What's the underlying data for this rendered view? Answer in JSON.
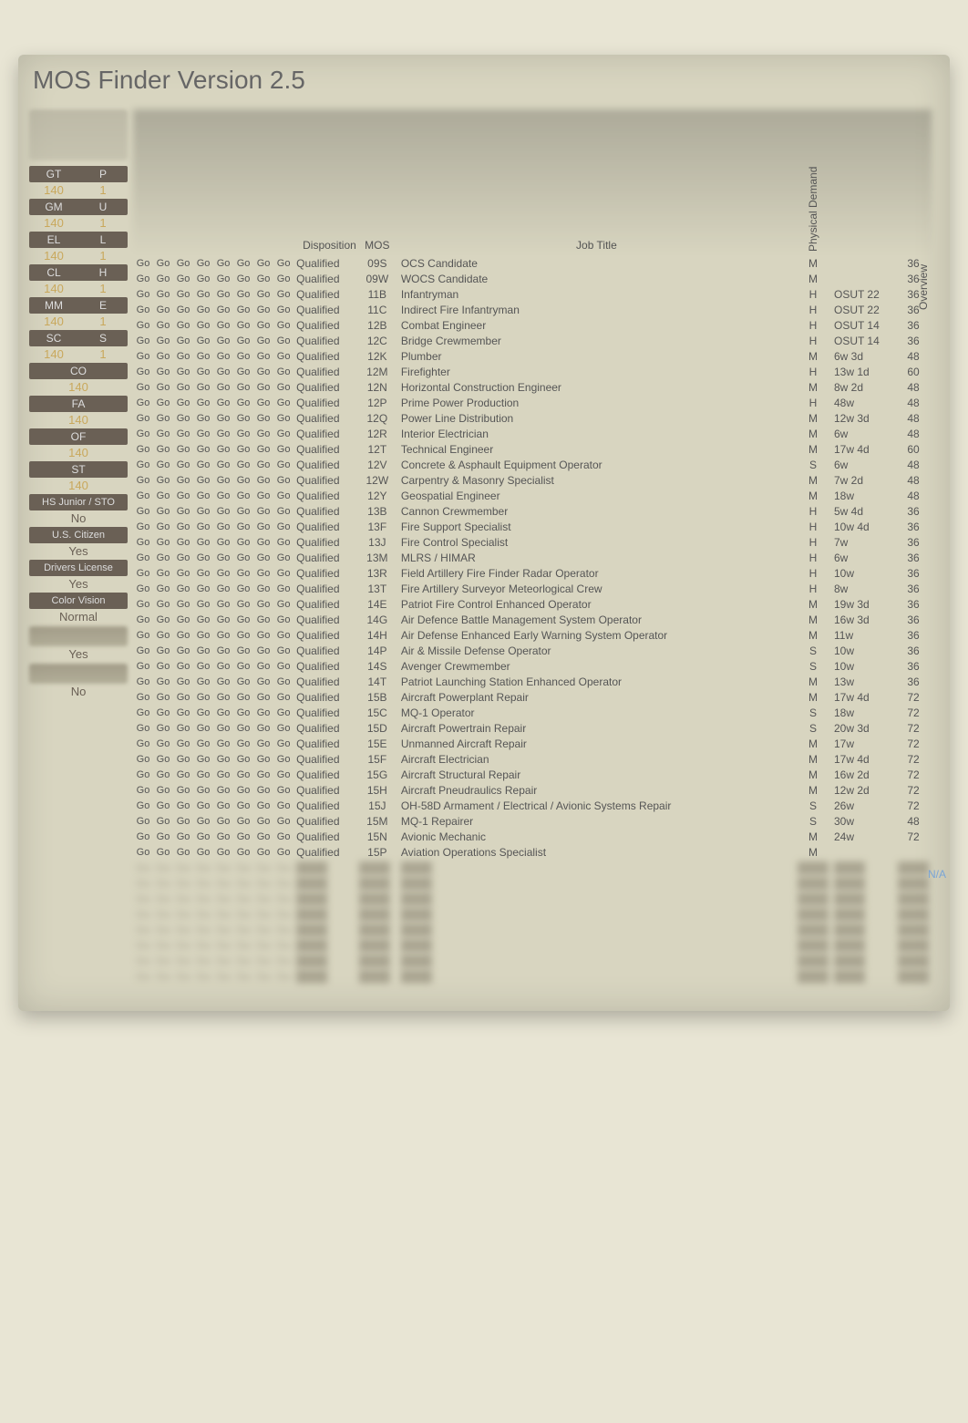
{
  "app_title": "MOS Finder Version 2.5",
  "colors": {
    "bg": "#e8e5d4",
    "panel": "#d8d5c0",
    "header_bar": "#6a6055",
    "value_text": "#c9a85c",
    "text": "#555555",
    "link_blue": "#7aa5d6"
  },
  "sidebar": {
    "scores": [
      {
        "left_label": "GT",
        "left_value": "140",
        "right_label": "P",
        "right_value": "1"
      },
      {
        "left_label": "GM",
        "left_value": "140",
        "right_label": "U",
        "right_value": "1"
      },
      {
        "left_label": "EL",
        "left_value": "140",
        "right_label": "L",
        "right_value": "1"
      },
      {
        "left_label": "CL",
        "left_value": "140",
        "right_label": "H",
        "right_value": "1"
      },
      {
        "left_label": "MM",
        "left_value": "140",
        "right_label": "E",
        "right_value": "1"
      },
      {
        "left_label": "SC",
        "left_value": "140",
        "right_label": "S",
        "right_value": "1"
      }
    ],
    "single_scores": [
      {
        "label": "CO",
        "value": "140"
      },
      {
        "label": "FA",
        "value": "140"
      },
      {
        "label": "OF",
        "value": "140"
      },
      {
        "label": "ST",
        "value": "140"
      }
    ],
    "qualifiers": [
      {
        "label": "HS Junior / STO",
        "value": "No"
      },
      {
        "label": "U.S. Citizen",
        "value": "Yes"
      },
      {
        "label": "Drivers License",
        "value": "Yes"
      },
      {
        "label": "Color Vision",
        "value": "Normal"
      }
    ],
    "answer_yes": "Yes",
    "answer_no": "No"
  },
  "columns": {
    "go_count": 8,
    "disposition": "Disposition",
    "mos": "MOS",
    "job_title": "Job Title",
    "physical_demand": "Physical Demand",
    "overview": "Overview"
  },
  "na_text": "N/A",
  "go_label": "Go",
  "rows": [
    {
      "disp": "Qualified",
      "mos": "09S",
      "title": "OCS Candidate",
      "phys": "M",
      "train": "",
      "num": "36"
    },
    {
      "disp": "Qualified",
      "mos": "09W",
      "title": "WOCS Candidate",
      "phys": "M",
      "train": "",
      "num": "36"
    },
    {
      "disp": "Qualified",
      "mos": "11B",
      "title": "Infantryman",
      "phys": "H",
      "train": "OSUT 22",
      "num": "36"
    },
    {
      "disp": "Qualified",
      "mos": "11C",
      "title": "Indirect Fire Infantryman",
      "phys": "H",
      "train": "OSUT 22",
      "num": "36"
    },
    {
      "disp": "Qualified",
      "mos": "12B",
      "title": "Combat Engineer",
      "phys": "H",
      "train": "OSUT 14",
      "num": "36"
    },
    {
      "disp": "Qualified",
      "mos": "12C",
      "title": "Bridge Crewmember",
      "phys": "H",
      "train": "OSUT 14",
      "num": "36"
    },
    {
      "disp": "Qualified",
      "mos": "12K",
      "title": "Plumber",
      "phys": "M",
      "train": "6w 3d",
      "num": "48"
    },
    {
      "disp": "Qualified",
      "mos": "12M",
      "title": "Firefighter",
      "phys": "H",
      "train": "13w 1d",
      "num": "60"
    },
    {
      "disp": "Qualified",
      "mos": "12N",
      "title": "Horizontal Construction Engineer",
      "phys": "M",
      "train": "8w 2d",
      "num": "48"
    },
    {
      "disp": "Qualified",
      "mos": "12P",
      "title": "Prime Power Production",
      "phys": "H",
      "train": "48w",
      "num": "48"
    },
    {
      "disp": "Qualified",
      "mos": "12Q",
      "title": "Power Line Distribution",
      "phys": "M",
      "train": "12w 3d",
      "num": "48"
    },
    {
      "disp": "Qualified",
      "mos": "12R",
      "title": "Interior Electrician",
      "phys": "M",
      "train": "6w",
      "num": "48"
    },
    {
      "disp": "Qualified",
      "mos": "12T",
      "title": "Technical Engineer",
      "phys": "M",
      "train": "17w 4d",
      "num": "60"
    },
    {
      "disp": "Qualified",
      "mos": "12V",
      "title": "Concrete & Asphault Equipment Operator",
      "phys": "S",
      "train": "6w",
      "num": "48"
    },
    {
      "disp": "Qualified",
      "mos": "12W",
      "title": "Carpentry & Masonry Specialist",
      "phys": "M",
      "train": "7w 2d",
      "num": "48"
    },
    {
      "disp": "Qualified",
      "mos": "12Y",
      "title": "Geospatial Engineer",
      "phys": "M",
      "train": "18w",
      "num": "48"
    },
    {
      "disp": "Qualified",
      "mos": "13B",
      "title": "Cannon Crewmember",
      "phys": "H",
      "train": "5w 4d",
      "num": "36"
    },
    {
      "disp": "Qualified",
      "mos": "13F",
      "title": "Fire Support Specialist",
      "phys": "H",
      "train": "10w 4d",
      "num": "36"
    },
    {
      "disp": "Qualified",
      "mos": "13J",
      "title": "Fire Control Specialist",
      "phys": "H",
      "train": "7w",
      "num": "36"
    },
    {
      "disp": "Qualified",
      "mos": "13M",
      "title": "MLRS / HIMAR",
      "phys": "H",
      "train": "6w",
      "num": "36"
    },
    {
      "disp": "Qualified",
      "mos": "13R",
      "title": "Field Artillery Fire Finder Radar Operator",
      "phys": "H",
      "train": "10w",
      "num": "36"
    },
    {
      "disp": "Qualified",
      "mos": "13T",
      "title": "Fire Artillery Surveyor Meteorlogical Crew",
      "phys": "H",
      "train": "8w",
      "num": "36"
    },
    {
      "disp": "Qualified",
      "mos": "14E",
      "title": "Patriot Fire Control Enhanced Operator",
      "phys": "M",
      "train": "19w 3d",
      "num": "36"
    },
    {
      "disp": "Qualified",
      "mos": "14G",
      "title": "Air Defence Battle Management System Operator",
      "phys": "M",
      "train": "16w 3d",
      "num": "36"
    },
    {
      "disp": "Qualified",
      "mos": "14H",
      "title": "Air Defense Enhanced Early Warning System Operator",
      "phys": "M",
      "train": "11w",
      "num": "36"
    },
    {
      "disp": "Qualified",
      "mos": "14P",
      "title": "Air & Missile Defense Operator",
      "phys": "S",
      "train": "10w",
      "num": "36"
    },
    {
      "disp": "Qualified",
      "mos": "14S",
      "title": "Avenger Crewmember",
      "phys": "S",
      "train": "10w",
      "num": "36"
    },
    {
      "disp": "Qualified",
      "mos": "14T",
      "title": "Patriot Launching Station Enhanced Operator",
      "phys": "M",
      "train": "13w",
      "num": "36"
    },
    {
      "disp": "Qualified",
      "mos": "15B",
      "title": "Aircraft Powerplant Repair",
      "phys": "M",
      "train": "17w 4d",
      "num": "72"
    },
    {
      "disp": "Qualified",
      "mos": "15C",
      "title": "MQ-1 Operator",
      "phys": "S",
      "train": "18w",
      "num": "72"
    },
    {
      "disp": "Qualified",
      "mos": "15D",
      "title": "Aircraft Powertrain Repair",
      "phys": "S",
      "train": "20w 3d",
      "num": "72"
    },
    {
      "disp": "Qualified",
      "mos": "15E",
      "title": "Unmanned Aircraft Repair",
      "phys": "M",
      "train": "17w",
      "num": "72"
    },
    {
      "disp": "Qualified",
      "mos": "15F",
      "title": "Aircraft Electrician",
      "phys": "M",
      "train": "17w 4d",
      "num": "72"
    },
    {
      "disp": "Qualified",
      "mos": "15G",
      "title": "Aircraft Structural Repair",
      "phys": "M",
      "train": "16w 2d",
      "num": "72"
    },
    {
      "disp": "Qualified",
      "mos": "15H",
      "title": "Aircraft Pneudraulics Repair",
      "phys": "M",
      "train": "12w 2d",
      "num": "72"
    },
    {
      "disp": "Qualified",
      "mos": "15J",
      "title": "OH-58D Armament / Electrical / Avionic Systems Repair",
      "phys": "S",
      "train": "26w",
      "num": "72"
    },
    {
      "disp": "Qualified",
      "mos": "15M",
      "title": "MQ-1 Repairer",
      "phys": "S",
      "train": "30w",
      "num": "48"
    },
    {
      "disp": "Qualified",
      "mos": "15N",
      "title": "Avionic Mechanic",
      "phys": "M",
      "train": "24w",
      "num": "72"
    },
    {
      "disp": "Qualified",
      "mos": "15P",
      "title": "Aviation Operations Specialist",
      "phys": "M",
      "train": "",
      "num": ""
    }
  ],
  "ghost_row_count": 8
}
